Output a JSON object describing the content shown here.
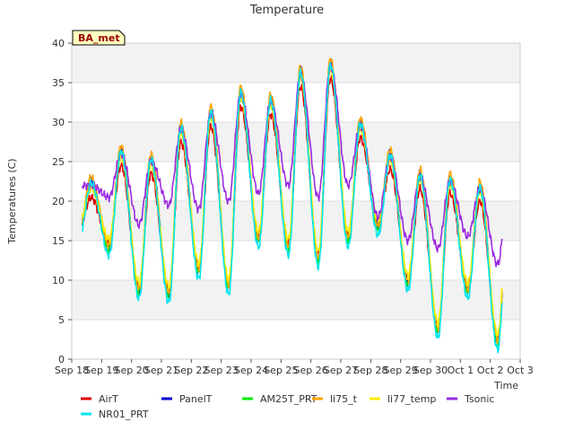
{
  "chart_data": {
    "type": "line",
    "title": "Temperature",
    "xlabel": "Time",
    "ylabel": "Temperatures (C)",
    "badge": "BA_met",
    "ylim": [
      0,
      40
    ],
    "yticks": [
      0,
      5,
      10,
      15,
      20,
      25,
      30,
      35,
      40
    ],
    "xlim": [
      0,
      15
    ],
    "xticks": [
      {
        "value": 0,
        "label": "Sep 18"
      },
      {
        "value": 1,
        "label": "Sep 19"
      },
      {
        "value": 2,
        "label": "Sep 20"
      },
      {
        "value": 3,
        "label": "Sep 21"
      },
      {
        "value": 4,
        "label": "Sep 22"
      },
      {
        "value": 5,
        "label": "Sep 23"
      },
      {
        "value": 6,
        "label": "Sep 24"
      },
      {
        "value": 7,
        "label": "Sep 25"
      },
      {
        "value": 8,
        "label": "Sep 26"
      },
      {
        "value": 9,
        "label": "Sep 27"
      },
      {
        "value": 10,
        "label": "Sep 28"
      },
      {
        "value": 11,
        "label": "Sep 29"
      },
      {
        "value": 12,
        "label": "Sep 30"
      },
      {
        "value": 13,
        "label": "Oct 1"
      },
      {
        "value": 14,
        "label": "Oct 2"
      },
      {
        "value": 15,
        "label": "Oct 3"
      }
    ],
    "grid": true,
    "legend_position": "bottom",
    "daily": {
      "x_offset_days": 0.35,
      "t_min_frac": 0.25,
      "t_max_frac": 0.65,
      "mins": [
        16.0,
        14.0,
        8.5,
        8.0,
        11.0,
        9.0,
        15.0,
        14.0,
        12.5,
        15.0,
        16.5,
        9.5,
        3.5,
        8.5,
        2.0,
        6.0
      ],
      "maxs": [
        22.0,
        26.0,
        25.0,
        29.0,
        31.0,
        33.5,
        32.5,
        36.0,
        37.0,
        29.5,
        25.5,
        23.0,
        22.5,
        21.5,
        24.0
      ]
    },
    "series": [
      {
        "name": "AirT",
        "color": "#dd0000",
        "max_adj": -1.5,
        "min_adj": 0.8
      },
      {
        "name": "PanelT",
        "color": "#0000cc",
        "max_adj": 0.5,
        "min_adj": 0.2
      },
      {
        "name": "AM25T_PRT",
        "color": "#00ee00",
        "max_adj": 0.0,
        "min_adj": 0.0
      },
      {
        "name": "li75_t",
        "color": "#ffa500",
        "max_adj": 1.0,
        "min_adj": 0.4
      },
      {
        "name": "li77_temp",
        "color": "#ffee00",
        "max_adj": -0.3,
        "min_adj": 1.2
      },
      {
        "name": "Tsonic",
        "color": "#9a2be0",
        "max_adj": 0.0,
        "min_adj": 0.0,
        "mins": [
          22.0,
          20.5,
          17.0,
          19.5,
          19.0,
          20.0,
          21.0,
          22.0,
          20.5,
          22.0,
          18.0,
          15.0,
          14.0,
          15.5,
          12.0,
          17.0
        ]
      },
      {
        "name": "NR01_PRT",
        "color": "#00e5ee",
        "max_adj": 0.3,
        "min_adj": -0.8
      }
    ]
  }
}
